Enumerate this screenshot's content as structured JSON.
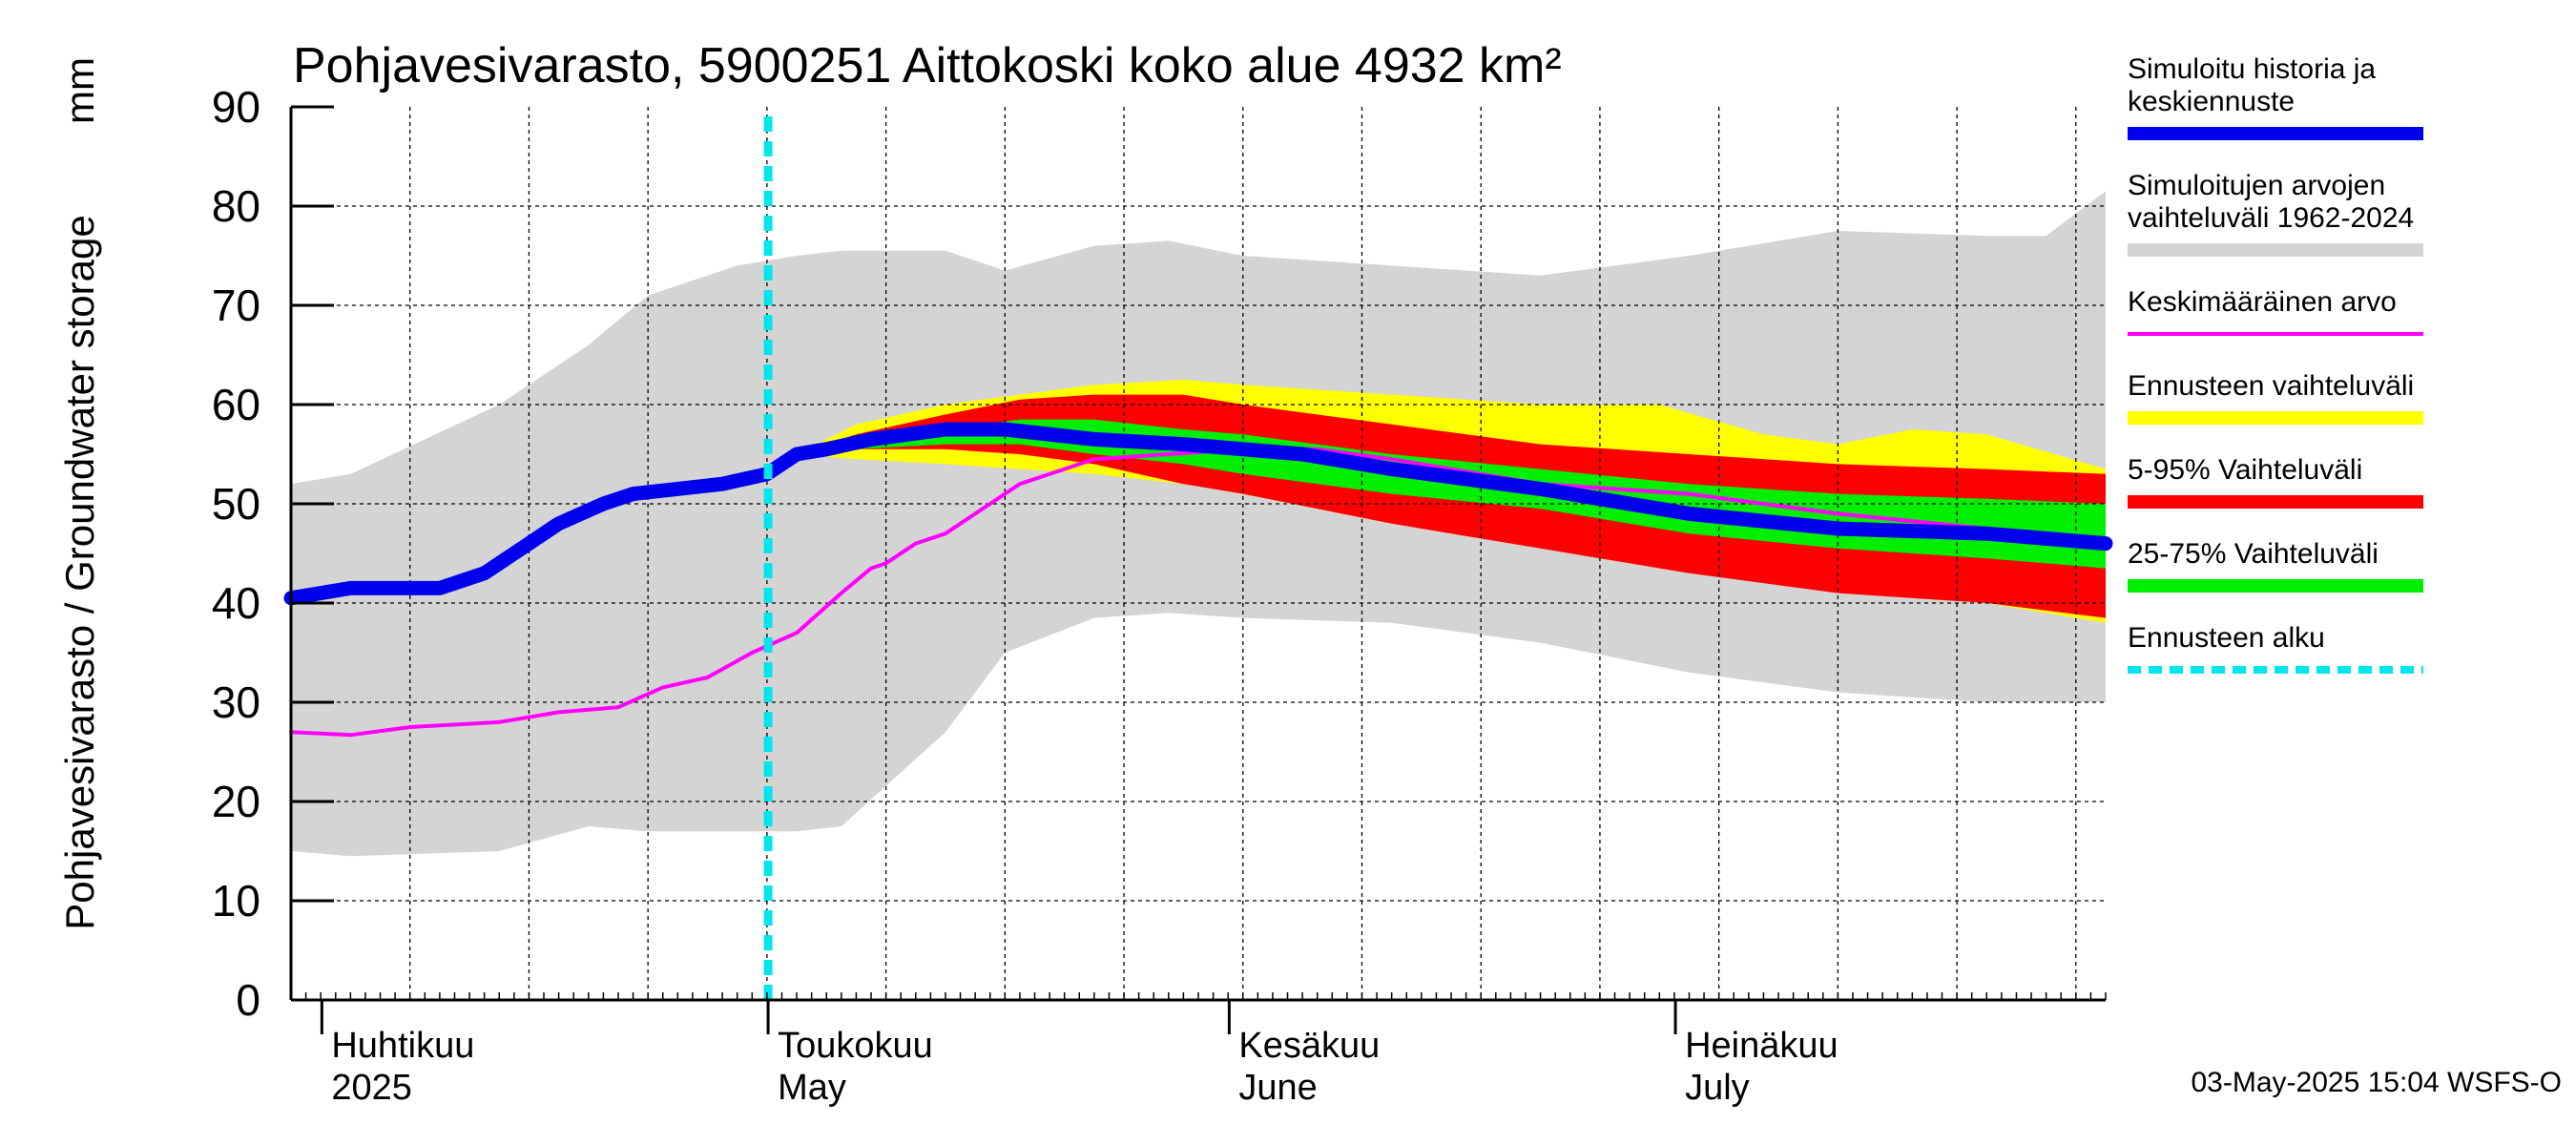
{
  "chart_data": {
    "type": "area",
    "title": "Pohjavesivarasto, 5900251 Aittokoski koko alue 4932 km²",
    "ylabel": "Pohjavesivarasto / Groundwater storage",
    "yunit": "mm",
    "ylim": [
      0,
      90
    ],
    "yticks": [
      0,
      10,
      20,
      30,
      40,
      50,
      60,
      70,
      80,
      90
    ],
    "xlim_day": [
      -4,
      118
    ],
    "month_labels": [
      {
        "day": 0,
        "line1": "Huhtikuu",
        "line2": "2025"
      },
      {
        "day": 30,
        "line1": "Toukokuu",
        "line2": "May"
      },
      {
        "day": 61,
        "line1": "Kesäkuu",
        "line2": "June"
      },
      {
        "day": 91,
        "line1": "Heinäkuu",
        "line2": "July"
      }
    ],
    "forecast_start_day": 30,
    "footer": "03-May-2025 15:04 WSFS-O",
    "series": [
      {
        "name": "Simuloitujen arvojen vaihteluväli 1962-2024",
        "kind": "band",
        "color": "#d4d4d4",
        "x": [
          -4,
          0,
          10,
          16,
          20,
          26,
          30,
          33,
          40,
          44,
          50,
          55,
          60,
          70,
          80,
          90,
          100,
          110,
          114,
          118
        ],
        "upper": [
          52,
          53,
          60,
          66,
          71,
          74,
          75,
          75.5,
          75.5,
          73.5,
          76,
          76.5,
          75,
          74,
          73,
          75,
          77.5,
          77,
          77,
          81.5
        ],
        "lower": [
          15,
          14.5,
          15,
          17.5,
          17,
          17,
          17,
          17.5,
          27,
          35,
          38.5,
          39,
          38.5,
          38,
          36,
          33,
          31,
          30,
          30,
          30
        ]
      },
      {
        "name": "Ennusteen vaihteluväli",
        "kind": "band",
        "color": "#ffff00",
        "x": [
          30,
          34,
          40,
          50,
          56,
          60,
          70,
          80,
          88,
          95,
          100,
          105,
          110,
          118
        ],
        "upper": [
          55,
          58,
          60,
          62,
          62.5,
          62,
          61,
          60,
          60,
          57,
          56,
          57.5,
          57,
          53.5
        ],
        "lower": [
          55,
          54.5,
          54,
          53,
          52,
          51,
          48,
          46,
          44,
          43,
          42,
          41,
          40,
          38
        ]
      },
      {
        "name": "5-95% Vaihteluväli",
        "kind": "band",
        "color": "#ff0000",
        "x": [
          30,
          34,
          40,
          45,
          50,
          56,
          60,
          70,
          80,
          90,
          100,
          110,
          118
        ],
        "upper": [
          55,
          57,
          59,
          60.5,
          61,
          61,
          60,
          58,
          56,
          55,
          54,
          53.5,
          53
        ],
        "lower": [
          55,
          55.5,
          55.5,
          55,
          54,
          52,
          51,
          48,
          45.5,
          43,
          41,
          40,
          38.5
        ]
      },
      {
        "name": "25-75% Vaihteluväli",
        "kind": "band",
        "color": "#00ee00",
        "x": [
          30,
          34,
          40,
          45,
          50,
          56,
          60,
          70,
          80,
          90,
          100,
          110,
          118
        ],
        "upper": [
          55,
          56.5,
          57.5,
          58.5,
          58.5,
          57.5,
          57,
          55,
          53.5,
          52,
          51,
          50.5,
          50
        ],
        "lower": [
          55,
          55.5,
          56,
          56,
          55,
          54,
          53,
          51,
          49.5,
          47,
          45.5,
          44.5,
          43.5
        ]
      },
      {
        "name": "Keskimääräinen arvo",
        "kind": "line",
        "color": "#ff00ff",
        "x": [
          -4,
          0,
          4,
          10,
          14,
          18,
          21,
          24,
          27,
          30,
          33,
          35,
          36,
          38,
          40,
          43,
          45,
          48,
          50,
          55,
          60,
          65,
          70,
          80,
          90,
          100,
          110,
          118
        ],
        "y": [
          27,
          26.7,
          27.5,
          28,
          29,
          29.5,
          31.5,
          32.5,
          35,
          37,
          41,
          43.5,
          44,
          46,
          47,
          50,
          52,
          53.5,
          54.5,
          55,
          55.5,
          55.5,
          54.5,
          52,
          51,
          49,
          47.5,
          46
        ]
      },
      {
        "name": "Simuloitu historia ja keskiennuste",
        "kind": "line",
        "color": "#0000ee",
        "x": [
          -4,
          0,
          2,
          6,
          9,
          12,
          14,
          17,
          19,
          22,
          25,
          28,
          30,
          32,
          35,
          40,
          44,
          50,
          56,
          60,
          64,
          70,
          80,
          90,
          100,
          110,
          118
        ],
        "y": [
          40.5,
          41.5,
          41.5,
          41.5,
          43,
          46,
          48,
          50,
          51,
          51.5,
          52,
          53,
          55,
          55.5,
          56.5,
          57.5,
          57.5,
          56.5,
          56,
          55.5,
          55,
          53.5,
          51.5,
          49,
          47.5,
          47,
          46
        ]
      }
    ],
    "legend": [
      {
        "label": "Simuloitu historia ja keskiennuste",
        "color": "#0000ee",
        "style": "thick"
      },
      {
        "label": "Simuloitujen arvojen vaihteluväli 1962-2024",
        "color": "#d4d4d4",
        "style": "thick"
      },
      {
        "label": "Keskimääräinen arvo",
        "color": "#ff00ff",
        "style": "thin"
      },
      {
        "label": "Ennusteen vaihteluväli",
        "color": "#ffff00",
        "style": "thick"
      },
      {
        "label": "5-95% Vaihteluväli",
        "color": "#ff0000",
        "style": "thick"
      },
      {
        "label": "25-75% Vaihteluväli",
        "color": "#00ee00",
        "style": "thick"
      },
      {
        "label": "Ennusteen alku",
        "color": "#00e5ee",
        "style": "dashed"
      }
    ]
  }
}
